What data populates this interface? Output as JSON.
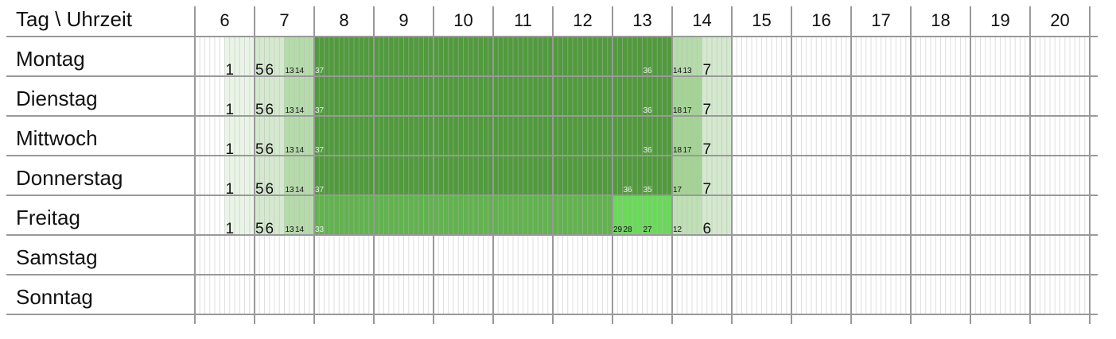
{
  "header": {
    "corner": "Tag \\ Uhrzeit",
    "hours": [
      6,
      7,
      8,
      9,
      10,
      11,
      12,
      13,
      14,
      15,
      16,
      17,
      18,
      19,
      20
    ]
  },
  "rows": [
    {
      "day": "Montag",
      "end": 900,
      "runs": [
        {
          "start": 390,
          "count": 1,
          "color": "#eaf4e7"
        },
        {
          "start": 420,
          "count": 5,
          "color": "#d4e9ce"
        },
        {
          "start": 430,
          "count": 6,
          "color": "#d4e9ce"
        },
        {
          "start": 450,
          "count": 13,
          "color": "#b6dbab"
        },
        {
          "start": 460,
          "count": 14,
          "color": "#b6dbab"
        },
        {
          "start": 480,
          "count": 37,
          "color": "#519a3d"
        },
        {
          "start": 810,
          "count": 36,
          "color": "#519a3d"
        },
        {
          "start": 840,
          "count": 14,
          "color": "#b6dbab"
        },
        {
          "start": 850,
          "count": 13,
          "color": "#b6dbab"
        },
        {
          "start": 870,
          "count": 7,
          "color": "#d4e9ce"
        }
      ]
    },
    {
      "day": "Dienstag",
      "end": 900,
      "runs": [
        {
          "start": 390,
          "count": 1,
          "color": "#eaf4e7"
        },
        {
          "start": 420,
          "count": 5,
          "color": "#d4e9ce"
        },
        {
          "start": 430,
          "count": 6,
          "color": "#d4e9ce"
        },
        {
          "start": 450,
          "count": 13,
          "color": "#b6dbab"
        },
        {
          "start": 460,
          "count": 14,
          "color": "#b6dbab"
        },
        {
          "start": 480,
          "count": 37,
          "color": "#519a3d"
        },
        {
          "start": 810,
          "count": 36,
          "color": "#519a3d"
        },
        {
          "start": 840,
          "count": 18,
          "color": "#a3d494"
        },
        {
          "start": 850,
          "count": 17,
          "color": "#a3d494"
        },
        {
          "start": 870,
          "count": 7,
          "color": "#d4e9ce"
        }
      ]
    },
    {
      "day": "Mittwoch",
      "end": 900,
      "runs": [
        {
          "start": 390,
          "count": 1,
          "color": "#eaf4e7"
        },
        {
          "start": 420,
          "count": 5,
          "color": "#d4e9ce"
        },
        {
          "start": 430,
          "count": 6,
          "color": "#d4e9ce"
        },
        {
          "start": 450,
          "count": 13,
          "color": "#b6dbab"
        },
        {
          "start": 460,
          "count": 14,
          "color": "#b6dbab"
        },
        {
          "start": 480,
          "count": 37,
          "color": "#519a3d"
        },
        {
          "start": 810,
          "count": 36,
          "color": "#519a3d"
        },
        {
          "start": 840,
          "count": 18,
          "color": "#a3d494"
        },
        {
          "start": 850,
          "count": 17,
          "color": "#a3d494"
        },
        {
          "start": 870,
          "count": 7,
          "color": "#d4e9ce"
        }
      ]
    },
    {
      "day": "Donnerstag",
      "end": 900,
      "runs": [
        {
          "start": 390,
          "count": 1,
          "color": "#eaf4e7"
        },
        {
          "start": 420,
          "count": 5,
          "color": "#d4e9ce"
        },
        {
          "start": 430,
          "count": 6,
          "color": "#d4e9ce"
        },
        {
          "start": 450,
          "count": 13,
          "color": "#b6dbab"
        },
        {
          "start": 460,
          "count": 14,
          "color": "#b6dbab"
        },
        {
          "start": 480,
          "count": 37,
          "color": "#519a3d"
        },
        {
          "start": 790,
          "count": 36,
          "color": "#519a3d"
        },
        {
          "start": 810,
          "count": 35,
          "color": "#519a3d"
        },
        {
          "start": 840,
          "count": 17,
          "color": "#a3d494"
        },
        {
          "start": 870,
          "count": 7,
          "color": "#d4e9ce"
        }
      ]
    },
    {
      "day": "Freitag",
      "end": 900,
      "runs": [
        {
          "start": 390,
          "count": 1,
          "color": "#eaf4e7"
        },
        {
          "start": 420,
          "count": 5,
          "color": "#d4e9ce"
        },
        {
          "start": 430,
          "count": 6,
          "color": "#d4e9ce"
        },
        {
          "start": 450,
          "count": 13,
          "color": "#b6dbab"
        },
        {
          "start": 460,
          "count": 14,
          "color": "#b6dbab"
        },
        {
          "start": 480,
          "count": 33,
          "color": "#62b24f"
        },
        {
          "start": 780,
          "count": 29,
          "color": "#6ad95a"
        },
        {
          "start": 790,
          "count": 28,
          "color": "#6ad95a"
        },
        {
          "start": 810,
          "count": 27,
          "color": "#6ad95a"
        },
        {
          "start": 840,
          "count": 12,
          "color": "#bfe0b5"
        },
        {
          "start": 870,
          "count": 6,
          "color": "#d4e9ce"
        }
      ]
    },
    {
      "day": "Samstag",
      "runs": []
    },
    {
      "day": "Sonntag",
      "runs": []
    }
  ]
}
